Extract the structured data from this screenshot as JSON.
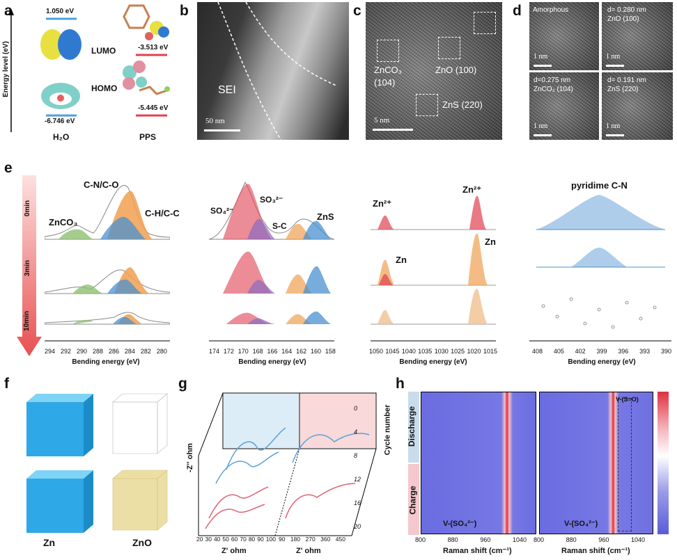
{
  "panel_labels": {
    "a": "a",
    "b": "b",
    "c": "c",
    "d": "d",
    "e": "e",
    "f": "f",
    "g": "g",
    "h": "h"
  },
  "panel_a": {
    "y_axis_label": "Energy level (eV)",
    "h2o_lumo": "1.050 eV",
    "h2o_homo": "-6.746 eV",
    "pps_lumo": "-3.513 eV",
    "pps_homo": "-5.445 eV",
    "lumo_label": "LUMO",
    "homo_label": "HOMO",
    "h2o_label": "H₂O",
    "pps_label": "PPS"
  },
  "panel_b": {
    "sei_label": "SEI",
    "scale": "50 nm"
  },
  "panel_c": {
    "zonco3_label": "ZnCO₃",
    "zonco3_plane": "(104)",
    "zno_label": "ZnO (100)",
    "zns_label": "ZnS (220)",
    "scale": "5 nm"
  },
  "panel_d": {
    "amorphous": "Amorphous",
    "zno_d": "d= 0.280 nm",
    "zno_plane": "ZnO (100)",
    "znco3_d": "d=0.275 nm",
    "znco3_plane": "ZnCO₃ (104)",
    "zns_d": "d= 0.191 nm",
    "zns_plane": "ZnS (220)",
    "scale1": "1 nm",
    "scale2": "1 nm",
    "scale3": "1 nm",
    "scale4": "1 nm"
  },
  "panel_e": {
    "times": [
      "0min",
      "3min",
      "10min"
    ],
    "xlabel": "Bending energy (eV)",
    "c1s": {
      "ticks": [
        "294",
        "292",
        "290",
        "288",
        "286",
        "284",
        "282",
        "280"
      ],
      "labels": {
        "cn": "C-N/C-O",
        "ch": "C-H/C-C",
        "znco3": "ZnCO₃"
      }
    },
    "s2p": {
      "ticks": [
        "174",
        "172",
        "170",
        "168",
        "166",
        "164",
        "162",
        "160",
        "158"
      ],
      "labels": {
        "so4": "SO₄²⁻",
        "so3": "SO₃²⁻",
        "sc": "S-C",
        "zns": "ZnS"
      }
    },
    "zn2p": {
      "ticks": [
        "1050",
        "1045",
        "1040",
        "1035",
        "1030",
        "1025",
        "1020",
        "1015"
      ],
      "labels": {
        "zn2a": "Zn²⁺",
        "zn2b": "Zn²⁺",
        "zna": "Zn",
        "znb": "Zn"
      }
    },
    "n1s": {
      "ticks": [
        "408",
        "405",
        "402",
        "399",
        "396",
        "393",
        "390"
      ],
      "labels": {
        "pyr": "pyridime C-N"
      }
    }
  },
  "panel_f": {
    "zn": "Zn",
    "zno": "ZnO"
  },
  "panel_g": {
    "ylabel": "-Z'' ohm",
    "xlabel_left": "Z' ohm",
    "xlabel_right": "Z' ohm",
    "x_ticks_left": [
      "20",
      "30",
      "40",
      "50",
      "60",
      "70",
      "80",
      "90",
      "100"
    ],
    "x_ticks_right": [
      "90",
      "180",
      "270",
      "360",
      "450"
    ],
    "cycle_label": "Cycle number",
    "cycle_ticks": [
      "0",
      "4",
      "8",
      "12",
      "16",
      "20"
    ]
  },
  "panel_h": {
    "discharge": "Discharge",
    "charge": "Charge",
    "so4_label_left": "V-(SO₄²⁻)",
    "so4_label_right": "V-(SO₄²⁻)",
    "so_label": "V-(S=O)",
    "xlabel": "Raman shift (cm⁻¹)",
    "ticks": [
      "800",
      "880",
      "960",
      "1040"
    ]
  },
  "colors": {
    "blue": "#3f8fd0",
    "red": "#e04050",
    "orange": "#f0a050",
    "green": "#8fbf70",
    "purple": "#8a6ac0"
  }
}
